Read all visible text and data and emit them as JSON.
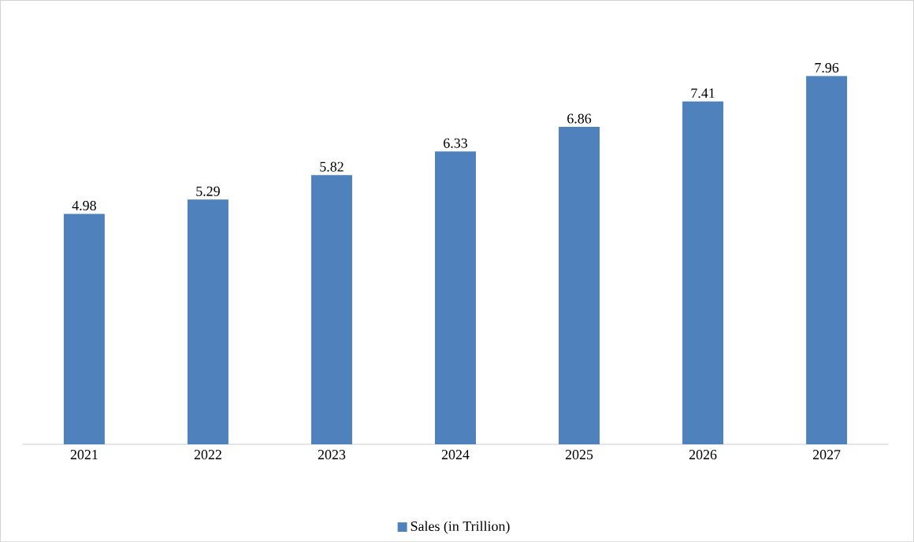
{
  "chart_data": {
    "type": "bar",
    "categories": [
      "2021",
      "2022",
      "2023",
      "2024",
      "2025",
      "2026",
      "2027"
    ],
    "series": [
      {
        "name": "Sales (in Trillion)",
        "color": "#4f81bd",
        "values": [
          4.98,
          5.29,
          5.82,
          6.33,
          6.86,
          7.41,
          7.96
        ]
      }
    ],
    "data_labels": true,
    "legend": "bottom",
    "grid": false,
    "tick_labels": "x"
  }
}
